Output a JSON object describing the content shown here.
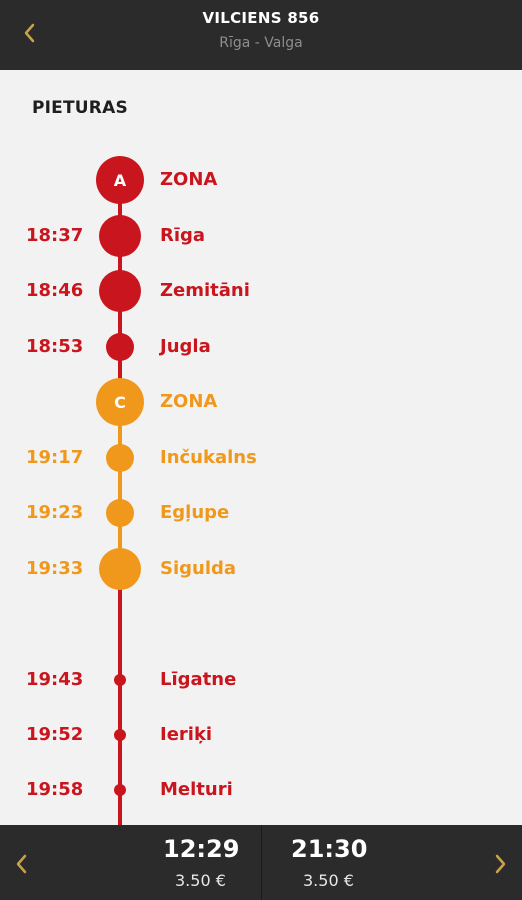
{
  "header": {
    "title": "VILCIENS 856",
    "subtitle": "Rīga - Valga",
    "back_icon": "chevron-left-icon"
  },
  "section_title": "PIETURAS",
  "colors": {
    "red": "#c9151d",
    "orange": "#f0981c",
    "header_bg": "#2b2b2b",
    "page_bg": "#f2f2f2"
  },
  "stops": [
    {
      "kind": "zone",
      "letter": "A",
      "name": "ZONA",
      "time": "",
      "color": "red"
    },
    {
      "kind": "station-major",
      "time": "18:37",
      "name": "Rīga",
      "color": "red"
    },
    {
      "kind": "station-major",
      "time": "18:46",
      "name": "Zemitāni",
      "color": "red"
    },
    {
      "kind": "station",
      "time": "18:53",
      "name": "Jugla",
      "color": "red"
    },
    {
      "kind": "zone",
      "letter": "C",
      "name": "ZONA",
      "time": "",
      "color": "orange"
    },
    {
      "kind": "station",
      "time": "19:17",
      "name": "Inčukalns",
      "color": "orange"
    },
    {
      "kind": "station",
      "time": "19:23",
      "name": "Egļupe",
      "color": "orange"
    },
    {
      "kind": "station-major",
      "time": "19:33",
      "name": "Sigulda",
      "color": "orange"
    },
    {
      "kind": "station-minor",
      "time": "19:43",
      "name": "Līgatne",
      "color": "red"
    },
    {
      "kind": "station-minor",
      "time": "19:52",
      "name": "Ieriķi",
      "color": "red"
    },
    {
      "kind": "station-minor",
      "time": "19:58",
      "name": "Melturi",
      "color": "red"
    }
  ],
  "footer": {
    "prev_icon": "chevron-left-icon",
    "next_icon": "chevron-right-icon",
    "departures": [
      {
        "time": "12:29",
        "price": "3.50 €"
      },
      {
        "time": "21:30",
        "price": "3.50 €"
      }
    ]
  }
}
